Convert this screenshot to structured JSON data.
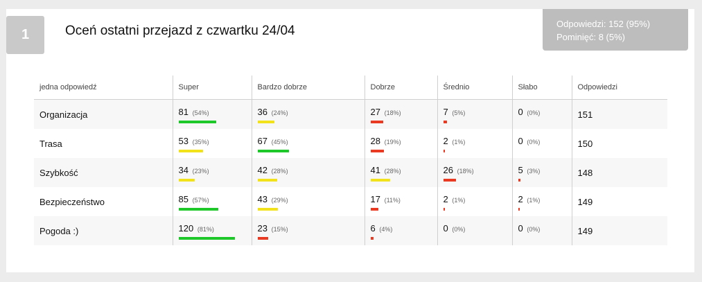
{
  "question": {
    "number": "1",
    "title": "Oceń ostatni przejazd z czwartku 24/04"
  },
  "stats": {
    "answers": "Odpowiedzi: 152 (95%)",
    "skipped": "Pominięć: 8 (5%)"
  },
  "colors": {
    "green": "#1ec82a",
    "yellow": "#f2e21b",
    "red": "#ea3b22"
  },
  "table": {
    "headers": [
      "jedna odpowiedź",
      "Super",
      "Bardzo dobrze",
      "Dobrze",
      "Średnio",
      "Słabo",
      "Odpowiedzi"
    ],
    "rows": [
      {
        "label": "Organizacja",
        "cells": [
          {
            "value": "81",
            "pct": "(54%)",
            "fraction": 0.54,
            "color": "green"
          },
          {
            "value": "36",
            "pct": "(24%)",
            "fraction": 0.24,
            "color": "yellow"
          },
          {
            "value": "27",
            "pct": "(18%)",
            "fraction": 0.18,
            "color": "red"
          },
          {
            "value": "7",
            "pct": "(5%)",
            "fraction": 0.05,
            "color": "red"
          },
          {
            "value": "0",
            "pct": "(0%)",
            "fraction": 0,
            "color": "red"
          }
        ],
        "count": "151"
      },
      {
        "label": "Trasa",
        "cells": [
          {
            "value": "53",
            "pct": "(35%)",
            "fraction": 0.35,
            "color": "yellow"
          },
          {
            "value": "67",
            "pct": "(45%)",
            "fraction": 0.45,
            "color": "green"
          },
          {
            "value": "28",
            "pct": "(19%)",
            "fraction": 0.19,
            "color": "red"
          },
          {
            "value": "2",
            "pct": "(1%)",
            "fraction": 0.01,
            "color": "red"
          },
          {
            "value": "0",
            "pct": "(0%)",
            "fraction": 0,
            "color": "red"
          }
        ],
        "count": "150"
      },
      {
        "label": "Szybkość",
        "cells": [
          {
            "value": "34",
            "pct": "(23%)",
            "fraction": 0.23,
            "color": "yellow"
          },
          {
            "value": "42",
            "pct": "(28%)",
            "fraction": 0.28,
            "color": "yellow"
          },
          {
            "value": "41",
            "pct": "(28%)",
            "fraction": 0.28,
            "color": "yellow"
          },
          {
            "value": "26",
            "pct": "(18%)",
            "fraction": 0.18,
            "color": "red"
          },
          {
            "value": "5",
            "pct": "(3%)",
            "fraction": 0.03,
            "color": "red"
          }
        ],
        "count": "148"
      },
      {
        "label": "Bezpieczeństwo",
        "cells": [
          {
            "value": "85",
            "pct": "(57%)",
            "fraction": 0.57,
            "color": "green"
          },
          {
            "value": "43",
            "pct": "(29%)",
            "fraction": 0.29,
            "color": "yellow"
          },
          {
            "value": "17",
            "pct": "(11%)",
            "fraction": 0.11,
            "color": "red"
          },
          {
            "value": "2",
            "pct": "(1%)",
            "fraction": 0.01,
            "color": "red"
          },
          {
            "value": "2",
            "pct": "(1%)",
            "fraction": 0.01,
            "color": "red"
          }
        ],
        "count": "149"
      },
      {
        "label": "Pogoda :)",
        "cells": [
          {
            "value": "120",
            "pct": "(81%)",
            "fraction": 0.81,
            "color": "green"
          },
          {
            "value": "23",
            "pct": "(15%)",
            "fraction": 0.15,
            "color": "red"
          },
          {
            "value": "6",
            "pct": "(4%)",
            "fraction": 0.04,
            "color": "red"
          },
          {
            "value": "0",
            "pct": "(0%)",
            "fraction": 0,
            "color": "red"
          },
          {
            "value": "0",
            "pct": "(0%)",
            "fraction": 0,
            "color": "red"
          }
        ],
        "count": "149"
      }
    ]
  }
}
